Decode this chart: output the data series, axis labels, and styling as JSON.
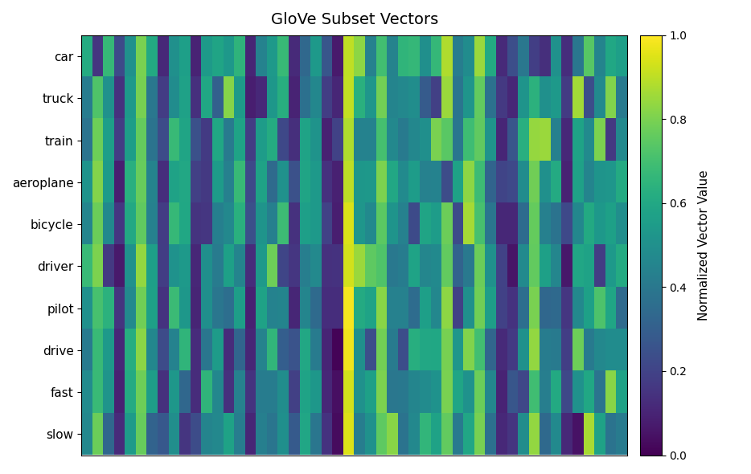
{
  "title": "GloVe Subset Vectors",
  "ylabel": "Normalized Vector Value",
  "words": [
    "car",
    "truck",
    "train",
    "aeroplane",
    "bicycle",
    "driver",
    "pilot",
    "drive",
    "fast",
    "slow"
  ],
  "n_dims": 50,
  "cmap": "viridis",
  "figsize": [
    9.34,
    5.9
  ],
  "dpi": 100
}
